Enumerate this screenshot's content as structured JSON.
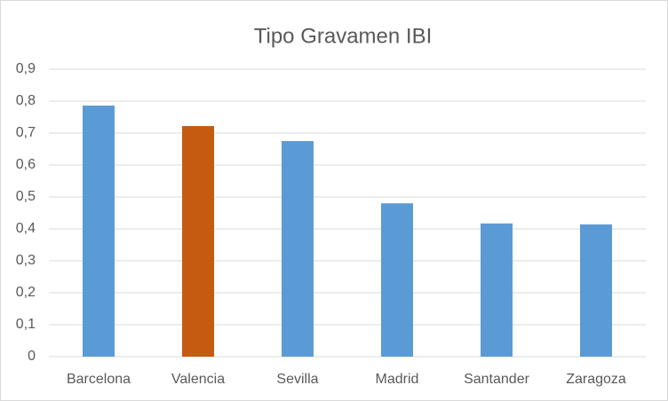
{
  "chart_data": {
    "type": "bar",
    "title": "Tipo Gravamen IBI",
    "categories": [
      "Barcelona",
      "Valencia",
      "Sevilla",
      "Madrid",
      "Santander",
      "Zaragoza"
    ],
    "values": [
      0.786,
      0.722,
      0.675,
      0.48,
      0.417,
      0.414
    ],
    "colors": [
      "#5b9bd5",
      "#c55a11",
      "#5b9bd5",
      "#5b9bd5",
      "#5b9bd5",
      "#5b9bd5"
    ],
    "ylim": [
      0,
      0.9
    ],
    "yticks": [
      0,
      {
        "value": 0.1,
        "label": "0,1"
      },
      {
        "value": 0.2,
        "label": "0,2"
      },
      {
        "value": 0.3,
        "label": "0,3"
      },
      {
        "value": 0.4,
        "label": "0,4"
      },
      {
        "value": 0.5,
        "label": "0,5"
      },
      {
        "value": 0.6,
        "label": "0,6"
      },
      {
        "value": 0.7,
        "label": "0,7"
      },
      {
        "value": 0.8,
        "label": "0,8"
      },
      {
        "value": 0.9,
        "label": "0,9"
      }
    ],
    "grid": true
  }
}
